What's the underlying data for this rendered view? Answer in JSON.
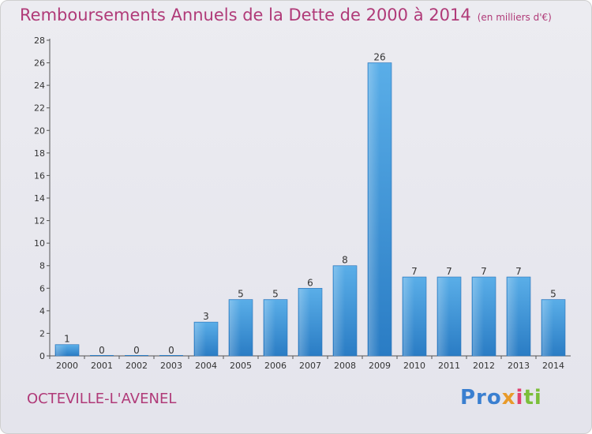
{
  "header": {
    "title": "Remboursements Annuels de la Dette de 2000 à 2014",
    "unit": "(en milliers d'€)"
  },
  "footer": {
    "commune": "OCTEVILLE-L'AVENEL",
    "logo": [
      "Pro",
      "x",
      "i",
      "ti"
    ]
  },
  "chart_data": {
    "type": "bar",
    "title": "Remboursements Annuels de la Dette de 2000 à 2014",
    "subtitle": "(en milliers d'€)",
    "xlabel": "",
    "ylabel": "",
    "categories": [
      "2000",
      "2001",
      "2002",
      "2003",
      "2004",
      "2005",
      "2006",
      "2007",
      "2008",
      "2009",
      "2010",
      "2011",
      "2012",
      "2013",
      "2014"
    ],
    "values": [
      1,
      0,
      0,
      0,
      3,
      5,
      5,
      6,
      8,
      26,
      7,
      7,
      7,
      7,
      5
    ],
    "data_labels": [
      "1",
      "0",
      "0",
      "0",
      "3",
      "5",
      "5",
      "6",
      "8",
      "26",
      "7",
      "7",
      "7",
      "7",
      "5"
    ],
    "ylim": [
      0,
      28
    ],
    "yticks": [
      0,
      2,
      4,
      6,
      8,
      10,
      12,
      14,
      16,
      18,
      20,
      22,
      24,
      26,
      28
    ],
    "ytick_labels": [
      "0",
      "2",
      "4",
      "6",
      "8",
      "10",
      "12",
      "14",
      "16",
      "18",
      "20",
      "22",
      "24",
      "26",
      "28"
    ],
    "grid": false,
    "legend": "none",
    "bar_color": "#3a8fd8"
  }
}
